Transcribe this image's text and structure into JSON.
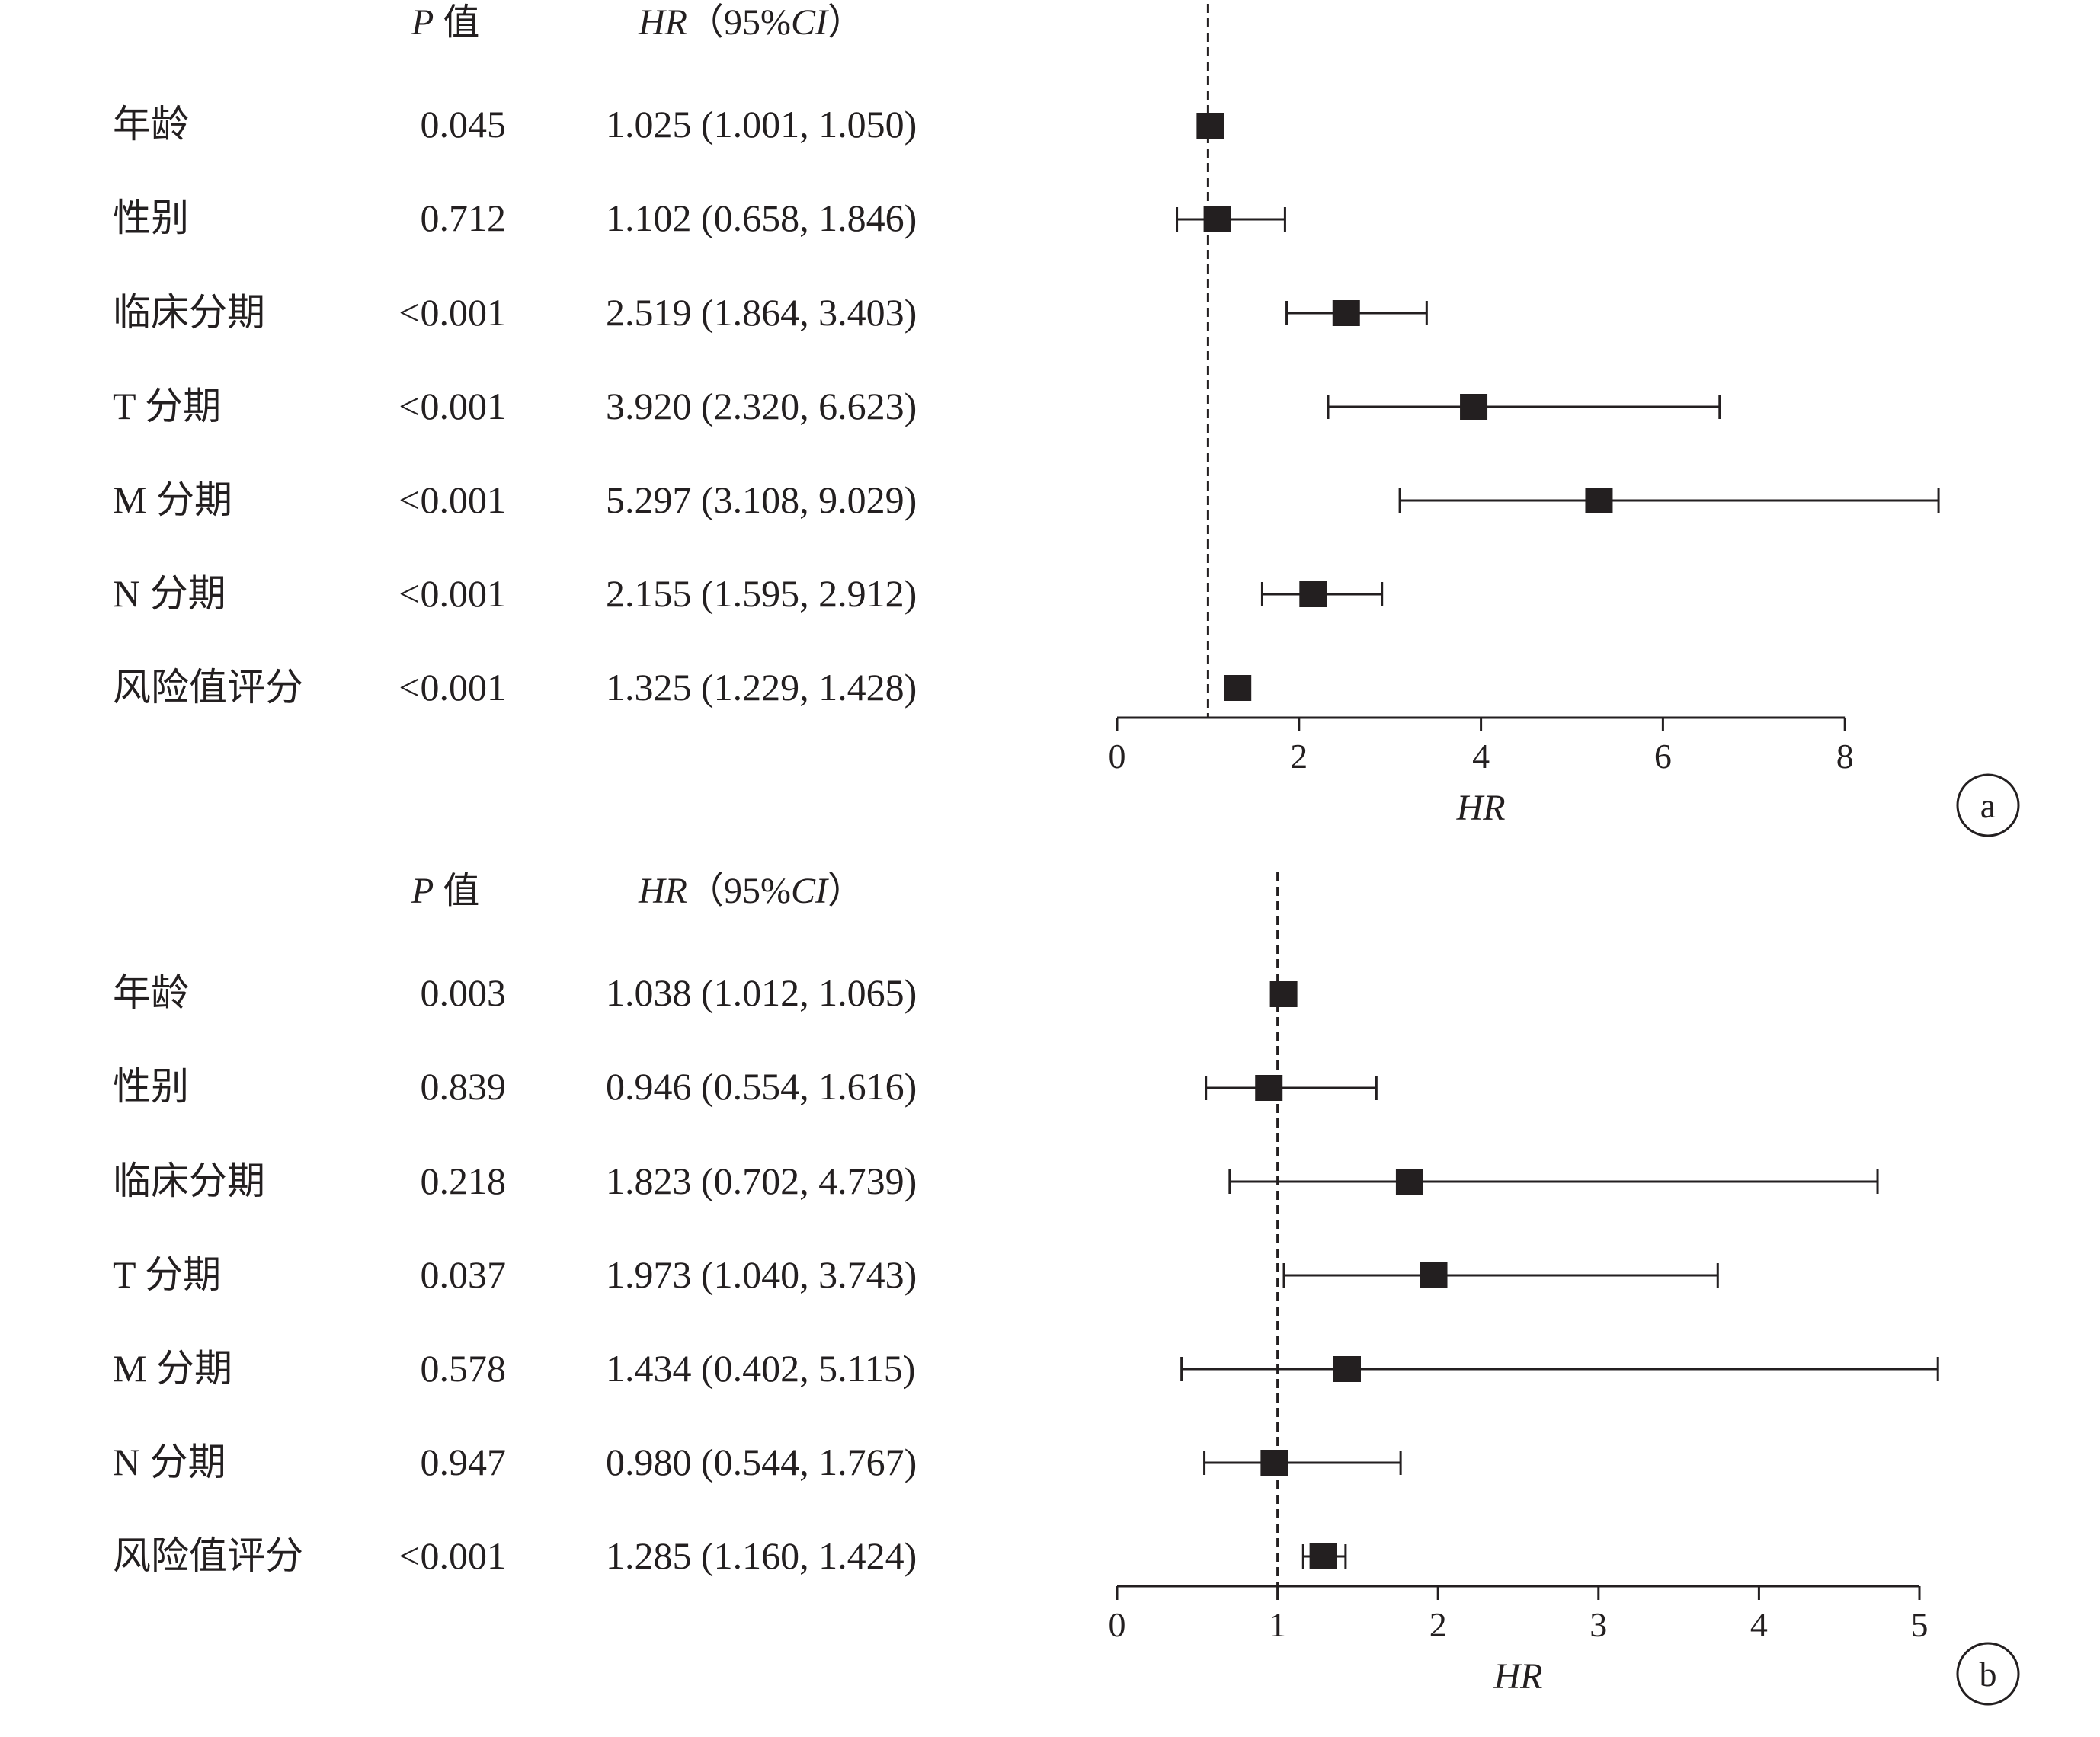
{
  "chart_data": [
    {
      "type": "forest",
      "panel_label": "a",
      "columns": {
        "p_label": "P",
        "p_suffix": " 值",
        "hr_label": "HR",
        "hr_open": "（95%",
        "hr_ci": "CI",
        "hr_close": "）"
      },
      "xlabel": "HR",
      "xlim": [
        0,
        8
      ],
      "xticks": [
        0,
        2,
        4,
        6,
        8
      ],
      "reference_line": 1,
      "rows": [
        {
          "label": "年龄",
          "p": "0.045",
          "hr_text": "1.025 (1.001, 1.050)",
          "hr": 1.025,
          "lo": 1.001,
          "hi": 1.05
        },
        {
          "label": "性别",
          "p": "0.712",
          "hr_text": "1.102 (0.658, 1.846)",
          "hr": 1.102,
          "lo": 0.658,
          "hi": 1.846
        },
        {
          "label": "临床分期",
          "p": "<0.001",
          "hr_text": "2.519 (1.864, 3.403)",
          "hr": 2.519,
          "lo": 1.864,
          "hi": 3.403
        },
        {
          "label": "T 分期",
          "p": "<0.001",
          "hr_text": "3.920 (2.320, 6.623)",
          "hr": 3.92,
          "lo": 2.32,
          "hi": 6.623
        },
        {
          "label": "M 分期",
          "p": "<0.001",
          "hr_text": "5.297 (3.108, 9.029)",
          "hr": 5.297,
          "lo": 3.108,
          "hi": 9.029
        },
        {
          "label": "N 分期",
          "p": "<0.001",
          "hr_text": "2.155 (1.595, 2.912)",
          "hr": 2.155,
          "lo": 1.595,
          "hi": 2.912
        },
        {
          "label": "风险值评分",
          "p": "<0.001",
          "hr_text": "1.325 (1.229, 1.428)",
          "hr": 1.325,
          "lo": 1.229,
          "hi": 1.428
        }
      ]
    },
    {
      "type": "forest",
      "panel_label": "b",
      "columns": {
        "p_label": "P",
        "p_suffix": " 值",
        "hr_label": "HR",
        "hr_open": "（95%",
        "hr_ci": "CI",
        "hr_close": "）"
      },
      "xlabel": "HR",
      "xlim": [
        0,
        5
      ],
      "xticks": [
        0,
        1,
        2,
        3,
        4,
        5
      ],
      "reference_line": 1,
      "rows": [
        {
          "label": "年龄",
          "p": "0.003",
          "hr_text": "1.038 (1.012, 1.065)",
          "hr": 1.038,
          "lo": 1.012,
          "hi": 1.065
        },
        {
          "label": "性别",
          "p": "0.839",
          "hr_text": "0.946 (0.554, 1.616)",
          "hr": 0.946,
          "lo": 0.554,
          "hi": 1.616
        },
        {
          "label": "临床分期",
          "p": "0.218",
          "hr_text": "1.823 (0.702, 4.739)",
          "hr": 1.823,
          "lo": 0.702,
          "hi": 4.739
        },
        {
          "label": "T 分期",
          "p": "0.037",
          "hr_text": "1.973 (1.040, 3.743)",
          "hr": 1.973,
          "lo": 1.04,
          "hi": 3.743
        },
        {
          "label": "M 分期",
          "p": "0.578",
          "hr_text": "1.434 (0.402, 5.115)",
          "hr": 1.434,
          "lo": 0.402,
          "hi": 5.115
        },
        {
          "label": "N 分期",
          "p": "0.947",
          "hr_text": "0.980 (0.544, 1.767)",
          "hr": 0.98,
          "lo": 0.544,
          "hi": 1.767
        },
        {
          "label": "风险值评分",
          "p": "<0.001",
          "hr_text": "1.285 (1.160, 1.424)",
          "hr": 1.285,
          "lo": 1.16,
          "hi": 1.424
        }
      ]
    }
  ]
}
